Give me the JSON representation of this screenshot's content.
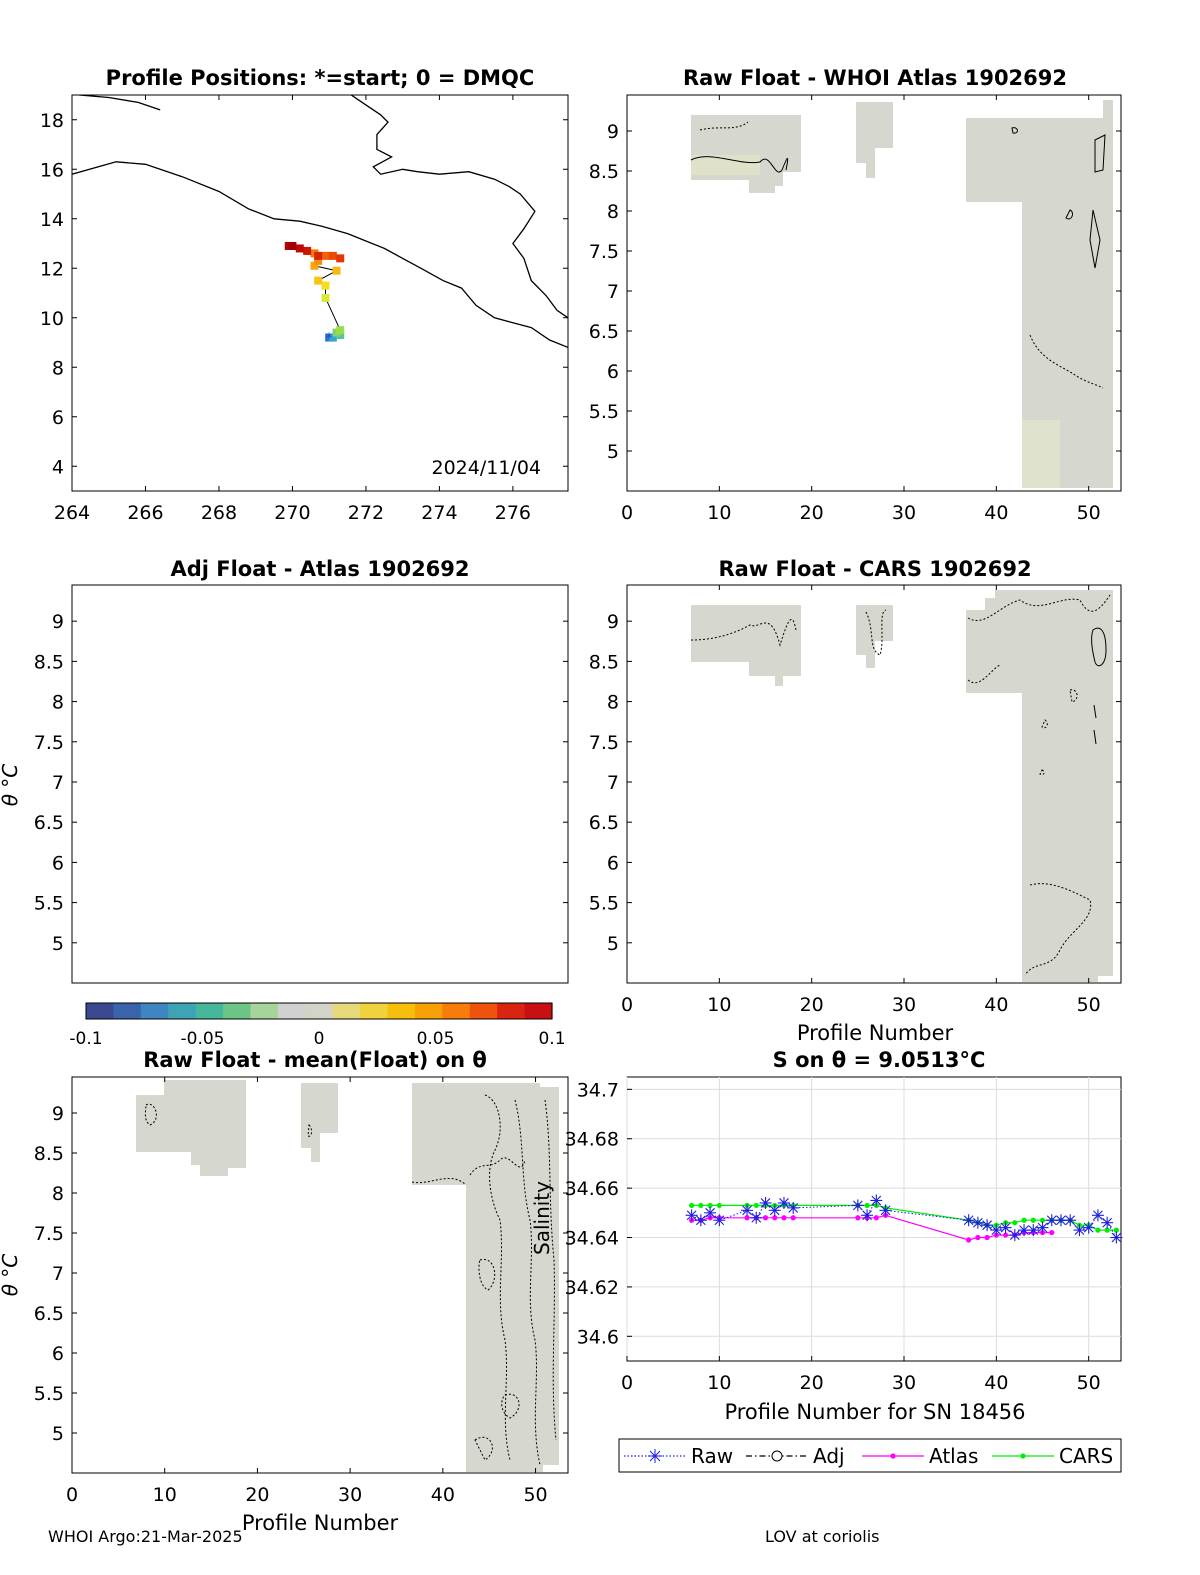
{
  "footer": {
    "left": "WHOI Argo:21-Mar-2025",
    "right": "LOV at coriolis"
  },
  "chart_data": [
    {
      "type": "scatter",
      "panel": "positions-map",
      "title": "Profile Positions: *=start; 0 = DMQC",
      "xlim": [
        264,
        277.5
      ],
      "ylim": [
        3,
        19
      ],
      "xticks": [
        264,
        266,
        268,
        270,
        272,
        274,
        276
      ],
      "yticks": [
        4,
        6,
        8,
        10,
        12,
        14,
        16,
        18
      ],
      "annotation": "2024/11/04",
      "track": [
        [
          271.0,
          9.2
        ],
        [
          271.1,
          9.2
        ],
        [
          271.3,
          9.3
        ],
        [
          271.2,
          9.4
        ],
        [
          271.3,
          9.5
        ],
        [
          270.9,
          10.8
        ],
        [
          270.9,
          11.3
        ],
        [
          270.7,
          11.5
        ],
        [
          271.2,
          11.9
        ],
        [
          270.6,
          12.1
        ],
        [
          270.7,
          12.3
        ],
        [
          270.6,
          12.6
        ],
        [
          270.9,
          12.5
        ],
        [
          271.1,
          12.5
        ],
        [
          271.3,
          12.4
        ],
        [
          270.7,
          12.5
        ],
        [
          270.4,
          12.7
        ],
        [
          270.2,
          12.8
        ],
        [
          269.9,
          12.9
        ],
        [
          270.0,
          12.9
        ]
      ],
      "track_colors": [
        "#2b6fd6",
        "#37a3d3",
        "#4fc79a",
        "#7fd36a",
        "#9bdc4e",
        "#d8e83a",
        "#f2e020",
        "#f6c516",
        "#f7b813",
        "#f7a60f",
        "#f88f0c",
        "#f57a0a",
        "#f06208",
        "#ea4a06",
        "#e23604",
        "#d82403",
        "#cc1502",
        "#bf0a02",
        "#b00502",
        "#a00001"
      ],
      "coast": [
        [
          [
            264,
            15.8
          ],
          [
            265.2,
            16.3
          ],
          [
            266,
            16.2
          ],
          [
            267,
            15.7
          ],
          [
            268,
            15.1
          ],
          [
            268.8,
            14.4
          ],
          [
            269.5,
            14.0
          ],
          [
            270.2,
            13.9
          ],
          [
            270.8,
            13.7
          ],
          [
            271.5,
            13.4
          ],
          [
            272,
            13.1
          ],
          [
            272.5,
            12.8
          ],
          [
            273,
            12.4
          ],
          [
            273.5,
            12.0
          ],
          [
            274.1,
            11.5
          ],
          [
            274.6,
            11.2
          ],
          [
            275.0,
            10.5
          ],
          [
            275.5,
            10.0
          ],
          [
            276,
            9.8
          ],
          [
            276.5,
            9.6
          ],
          [
            277,
            9.1
          ],
          [
            277.5,
            8.8
          ]
        ],
        [
          [
            277.5,
            10.0
          ],
          [
            277.2,
            10.3
          ],
          [
            276.9,
            10.9
          ],
          [
            276.5,
            11.5
          ],
          [
            276.3,
            12.4
          ],
          [
            276.0,
            13.0
          ],
          [
            276.3,
            13.6
          ],
          [
            276.6,
            14.3
          ],
          [
            276.2,
            15.0
          ],
          [
            275.9,
            15.3
          ],
          [
            275.5,
            15.6
          ],
          [
            274.8,
            15.9
          ],
          [
            274.0,
            15.8
          ],
          [
            273.4,
            15.9
          ],
          [
            273.0,
            16.0
          ],
          [
            272.4,
            15.8
          ],
          [
            272.2,
            16.1
          ],
          [
            272.7,
            16.5
          ],
          [
            272.3,
            16.8
          ],
          [
            272.3,
            17.4
          ],
          [
            272.6,
            17.9
          ],
          [
            272.4,
            18.2
          ],
          [
            272.0,
            18.6
          ],
          [
            271.6,
            19.0
          ]
        ],
        [
          [
            264.2,
            19.0
          ],
          [
            265.0,
            18.9
          ],
          [
            265.8,
            18.7
          ],
          [
            266.4,
            18.4
          ]
        ]
      ]
    },
    {
      "type": "heatmap",
      "panel": "raw-whoi",
      "title": "Raw Float - WHOI Atlas  1902692",
      "xlim": [
        0,
        53.5
      ],
      "ylim": [
        4.5,
        9.45
      ],
      "xticks": [
        0,
        10,
        20,
        30,
        40,
        50
      ],
      "yticks": [
        5,
        5.5,
        6,
        6.5,
        7,
        7.5,
        8,
        8.5,
        9
      ],
      "xlabel": "",
      "ylabel": ""
    },
    {
      "type": "heatmap",
      "panel": "adj-atlas",
      "title": "Adj Float - Atlas  1902692",
      "xlim": [
        0,
        53.5
      ],
      "ylim": [
        4.5,
        9.45
      ],
      "xticks": [],
      "yticks": [
        5,
        5.5,
        6,
        6.5,
        7,
        7.5,
        8,
        8.5,
        9
      ],
      "xlabel": "",
      "ylabel": "θ °C"
    },
    {
      "type": "heatmap",
      "panel": "raw-cars",
      "title": "Raw Float - CARS  1902692",
      "xlim": [
        0,
        53.5
      ],
      "ylim": [
        4.5,
        9.45
      ],
      "xticks": [
        0,
        10,
        20,
        30,
        40,
        50
      ],
      "yticks": [
        5,
        5.5,
        6,
        6.5,
        7,
        7.5,
        8,
        8.5,
        9
      ],
      "xlabel": "Profile Number",
      "ylabel": ""
    },
    {
      "type": "heatmap",
      "panel": "raw-mean",
      "title": "Raw Float - mean(Float) on θ",
      "xlim": [
        0,
        53.5
      ],
      "ylim": [
        4.5,
        9.45
      ],
      "xticks": [
        0,
        10,
        20,
        30,
        40,
        50
      ],
      "yticks": [
        5,
        5.5,
        6,
        6.5,
        7,
        7.5,
        8,
        8.5,
        9
      ],
      "xlabel": "Profile Number",
      "ylabel": "θ °C"
    },
    {
      "type": "line",
      "panel": "salinity",
      "title": "S on θ = 9.0513°C",
      "xlabel": "Profile Number for SN 18456",
      "ylabel": "Salinity",
      "xlim": [
        0,
        53.5
      ],
      "ylim": [
        34.59,
        34.705
      ],
      "xticks": [
        0,
        10,
        20,
        30,
        40,
        50
      ],
      "yticks": [
        34.6,
        34.62,
        34.64,
        34.66,
        34.68,
        34.7
      ],
      "grid": true,
      "legend_position": "below",
      "series": [
        {
          "name": "Raw",
          "color": "#1f1fdf",
          "x": [
            7,
            8,
            9,
            10,
            13,
            14,
            15,
            16,
            17,
            18,
            25,
            26,
            27,
            28,
            37,
            38,
            39,
            40,
            41,
            42,
            43,
            44,
            45,
            46,
            47,
            48,
            49,
            50,
            51,
            52,
            53
          ],
          "y": [
            34.649,
            34.647,
            34.65,
            34.647,
            34.651,
            34.648,
            34.654,
            34.651,
            34.654,
            34.652,
            34.653,
            34.649,
            34.655,
            34.651,
            34.647,
            34.646,
            34.645,
            34.643,
            34.644,
            34.641,
            34.643,
            34.643,
            34.644,
            34.647,
            34.647,
            34.647,
            34.643,
            34.644,
            34.649,
            34.646,
            34.64
          ]
        },
        {
          "name": "Adj",
          "color": "#000000",
          "x": [],
          "y": []
        },
        {
          "name": "Atlas",
          "color": "#ff00ff",
          "x": [
            7,
            8,
            9,
            10,
            13,
            14,
            15,
            16,
            17,
            18,
            25,
            26,
            27,
            28,
            37,
            38,
            39,
            40,
            41,
            42,
            43,
            44,
            45,
            46
          ],
          "y": [
            34.647,
            34.647,
            34.648,
            34.648,
            34.648,
            34.648,
            34.648,
            34.648,
            34.648,
            34.648,
            34.648,
            34.648,
            34.648,
            34.649,
            34.639,
            34.64,
            34.64,
            34.641,
            34.641,
            34.641,
            34.642,
            34.642,
            34.642,
            34.642
          ]
        },
        {
          "name": "CARS",
          "color": "#00ee00",
          "x": [
            7,
            8,
            9,
            10,
            13,
            14,
            15,
            16,
            17,
            18,
            25,
            26,
            27,
            28,
            37,
            38,
            39,
            40,
            41,
            42,
            43,
            44,
            45,
            46,
            47,
            48,
            49,
            50,
            51,
            52,
            53
          ],
          "y": [
            34.653,
            34.653,
            34.653,
            34.653,
            34.653,
            34.653,
            34.653,
            34.653,
            34.653,
            34.653,
            34.653,
            34.653,
            34.653,
            34.652,
            34.647,
            34.646,
            34.645,
            34.645,
            34.646,
            34.646,
            34.647,
            34.647,
            34.647,
            34.647,
            34.647,
            34.647,
            34.645,
            34.645,
            34.643,
            34.643,
            34.643
          ]
        }
      ]
    }
  ],
  "colorbar": {
    "ticks": [
      "-0.1",
      "-0.05",
      "0",
      "0.05",
      "0.1"
    ],
    "colors": [
      "#3b4a8f",
      "#3a64a9",
      "#3f86c0",
      "#3ea3b5",
      "#45b89b",
      "#6cc486",
      "#a6d49b",
      "#d1d1d1",
      "#d3d3c7",
      "#e6d97a",
      "#f0d23c",
      "#f6bf0c",
      "#f8a106",
      "#f77c09",
      "#ee520c",
      "#d92410",
      "#c70f14"
    ]
  }
}
